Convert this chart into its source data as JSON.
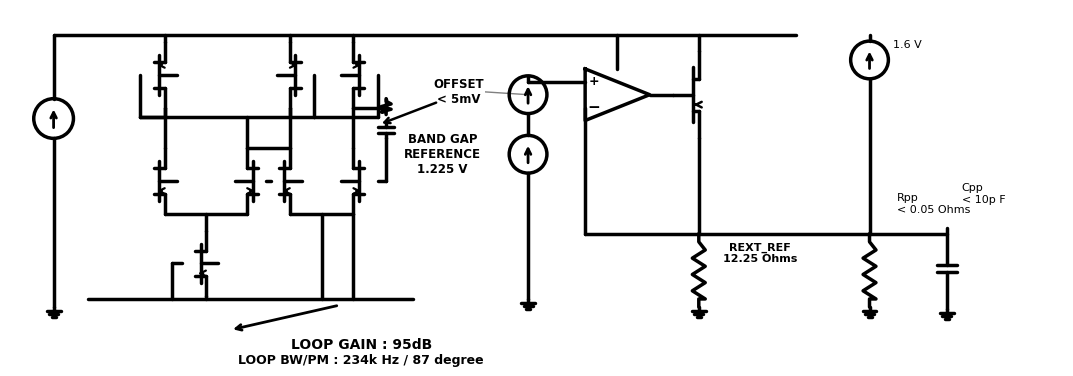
{
  "bg_color": "#ffffff",
  "line_color": "#000000",
  "line_width": 2.5,
  "labels": {
    "offset": "OFFSET\n< 5mV",
    "bandgap": "BAND GAP\nREFERENCE\n1.225 V",
    "rext_ref": "REXT_REF\n12.25 Ohms",
    "rpp": "Rpp\n< 0.05 Ohms",
    "cpp": "Cpp\n< 10p F",
    "voltage": "1.6 V",
    "loop_gain": "LOOP GAIN : 95dB",
    "loop_bw": "LOOP BW/PM : 234k Hz / 87 degree"
  }
}
